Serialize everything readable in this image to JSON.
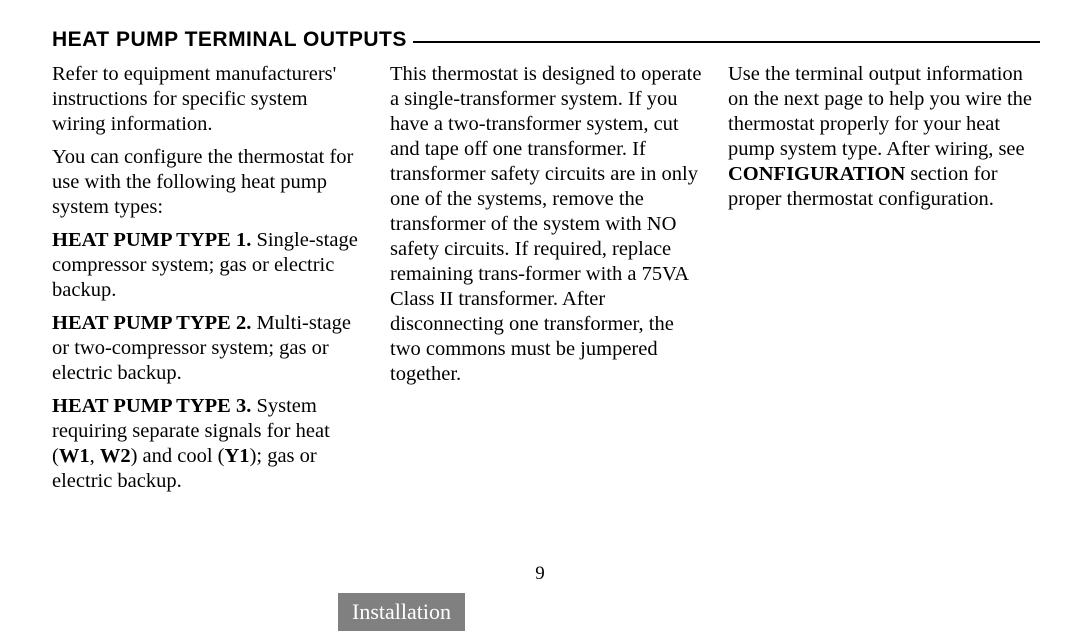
{
  "heading": "HEAT PUMP TERMINAL OUTPUTS",
  "col1": {
    "p1": "Refer to equipment manufacturers' instructions for specific system wiring information.",
    "p2": "You can configure the thermostat for use with the following heat pump system types:",
    "t1_label": "HEAT PUMP TYPE 1.",
    "t1_text": " Single-stage compressor system; gas or electric backup.",
    "t2_label": "HEAT PUMP TYPE 2.",
    "t2_text": " Multi-stage or two-compressor system; gas or electric backup.",
    "t3_label": "HEAT PUMP TYPE 3.",
    "t3_pre": " System requiring separate signals for heat (",
    "t3_w1": "W1",
    "t3_mid1": ", ",
    "t3_w2": "W2",
    "t3_mid2": ") and cool (",
    "t3_y1": "Y1",
    "t3_post": "); gas or electric backup."
  },
  "col2": {
    "p1": "This thermostat is designed to operate a single-transformer system. If you have a two-transformer system, cut and tape off one transformer.  If transformer safety circuits are in only one of the systems, remove the transformer of the system with NO safety circuits. If required, replace remaining trans-former with a 75VA Class II transformer. After disconnecting one transformer, the two commons must be jumpered together."
  },
  "col3": {
    "p1_pre": "Use the terminal output information on the next page to help you wire the thermostat properly for your heat pump system type. After wiring, see ",
    "p1_bold": "CONFIGURATION",
    "p1_post": " section for proper thermostat configuration."
  },
  "page_number": "9",
  "tab": "Installation"
}
